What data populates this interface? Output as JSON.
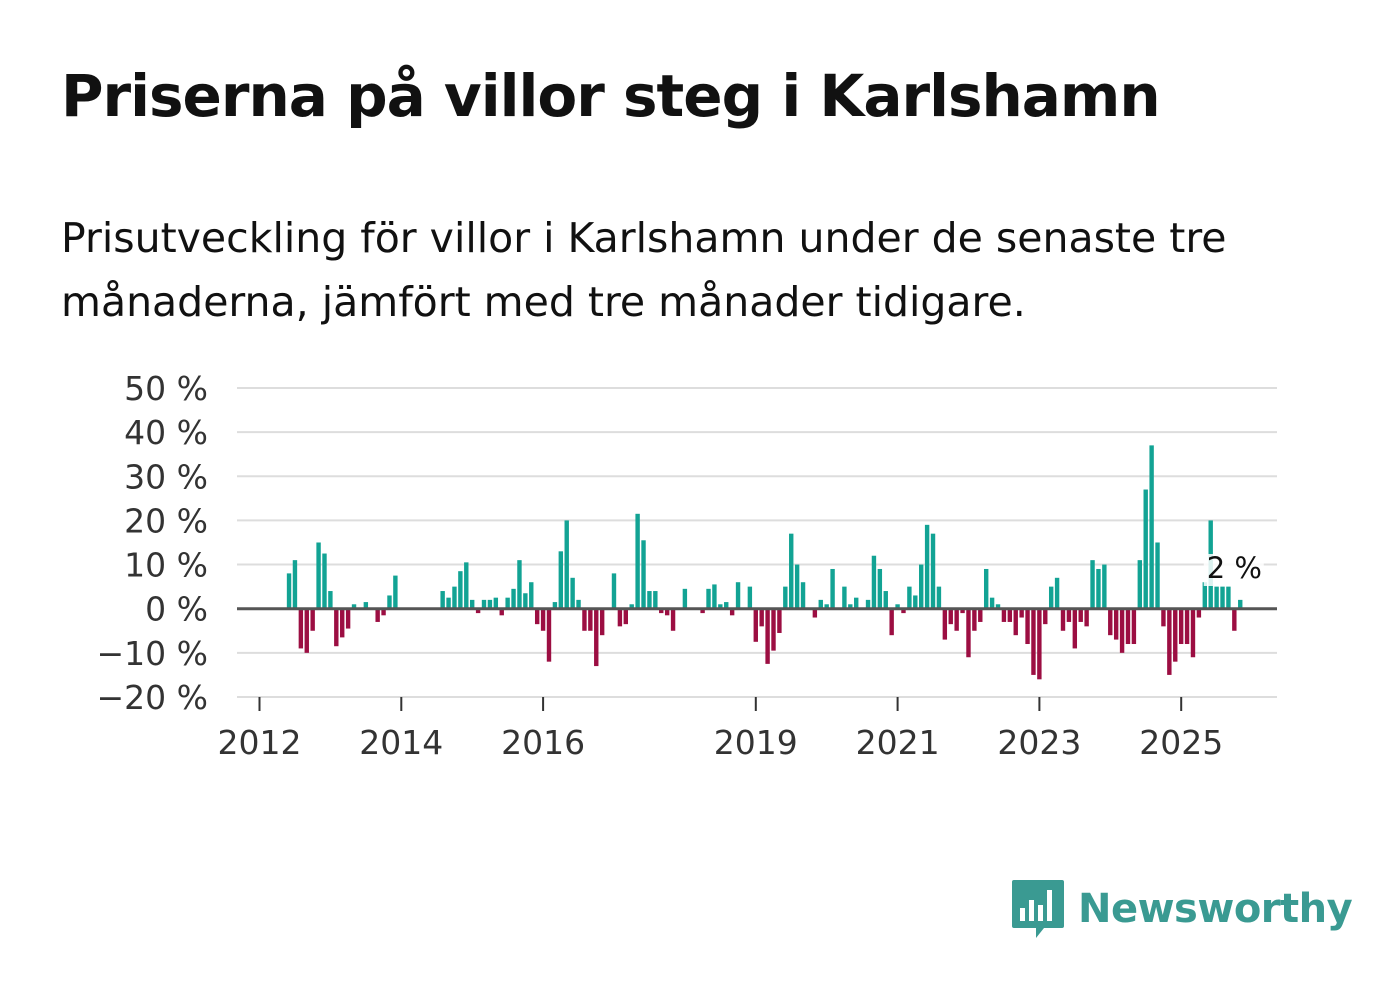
{
  "header": {
    "title": "Priserna på villor steg i Karlshamn",
    "subtitle": "Prisutveckling för villor i Karlshamn under de senaste tre månaderna, jämfört med tre månader tidigare."
  },
  "brand": {
    "name": "Newsworthy",
    "color": "#3a9a92",
    "icon": "bar-chart-speech-bubble-icon"
  },
  "colors": {
    "positive": "#12a394",
    "negative": "#9c0e42",
    "grid": "#dddddd",
    "zero": "#555555"
  },
  "chart_data": {
    "type": "bar",
    "title": "Priserna på villor steg i Karlshamn",
    "xlabel": "",
    "ylabel": "",
    "ylim": [
      -20,
      50
    ],
    "yticks": [
      50,
      40,
      30,
      20,
      10,
      0,
      -10,
      -20
    ],
    "ytick_labels": [
      "50 %",
      "40 %",
      "30 %",
      "20 %",
      "10 %",
      "0 %",
      "−10 %",
      "−20 %"
    ],
    "xticks": [
      2012,
      2014,
      2016,
      2019,
      2021,
      2023,
      2025
    ],
    "xtick_labels": [
      "2012",
      "2014",
      "2016",
      "2019",
      "2021",
      "2023",
      "2025"
    ],
    "x_start": 2012.0,
    "x_step": 0.08333,
    "values": [
      null,
      null,
      null,
      null,
      null,
      8,
      11,
      -9,
      -10,
      -5,
      15,
      12.5,
      4,
      -8.5,
      -6.5,
      -4.5,
      1,
      null,
      1.5,
      null,
      -3,
      -1.5,
      3,
      7.5,
      null,
      null,
      null,
      null,
      null,
      null,
      null,
      4,
      2.5,
      5,
      8.5,
      10.5,
      2,
      -1,
      2,
      2,
      2.5,
      -1.5,
      2.5,
      4.5,
      11,
      3.5,
      6,
      -3.5,
      -5,
      -12,
      1.5,
      13,
      20,
      7,
      2,
      -5,
      -5,
      -13,
      -6,
      null,
      8,
      -4,
      -3.5,
      1,
      21.5,
      15.5,
      4,
      4,
      -1,
      -1.5,
      -5,
      null,
      4.5,
      null,
      null,
      -1,
      4.5,
      5.5,
      1,
      1.5,
      -1.5,
      6,
      null,
      5,
      -7.5,
      -4,
      -12.5,
      -9.5,
      -5.5,
      5,
      17,
      10,
      6,
      null,
      -2,
      2,
      1,
      9,
      null,
      5,
      1,
      2.5,
      null,
      2,
      12,
      9,
      4,
      -6,
      1,
      -1,
      5,
      3,
      10,
      19,
      17,
      5,
      -7,
      -3.5,
      -5,
      -1,
      -11,
      -5,
      -3,
      9,
      2.5,
      1,
      -3,
      -3,
      -6,
      -2,
      -8,
      -15,
      -16,
      -3.5,
      5,
      7,
      -5,
      -3,
      -9,
      -3,
      -4,
      11,
      9,
      10,
      -6,
      -7,
      -10,
      -8,
      -8,
      11,
      27,
      37,
      15,
      -4,
      -15,
      -12,
      -8,
      -8,
      -11,
      -2,
      6,
      20,
      5,
      5,
      5,
      -5,
      2
    ],
    "annotation": {
      "text": "2 %",
      "value": 2,
      "x": 2025.417
    }
  }
}
